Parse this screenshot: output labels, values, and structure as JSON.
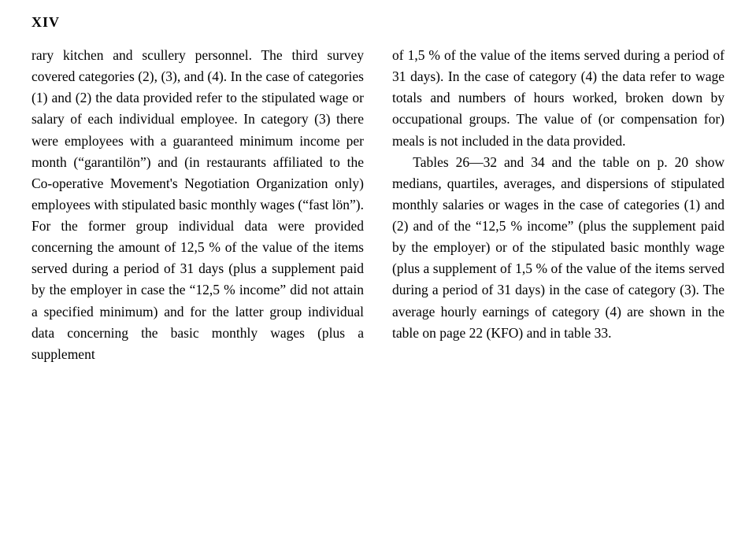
{
  "pageNumber": "XIV",
  "columns": {
    "left": "rary kitchen and scullery personnel. The third survey covered categories (2), (3), and (4). In the case of categories (1) and (2) the data provided refer to the stipulated wage or salary of each individual employee. In category (3) there were employees with a guaranteed minimum income per month (“garantilön”) and (in restaurants affiliated to the Co-operative Movement's Negotiation Organization only) employees with stipulated basic monthly wages (“fast lön”). For the former group individual data were provided concerning the amount of 12,5 % of the value of the items served during a period of 31 days (plus a supplement paid by the employer in case the “12,5 % income” did not attain a specified minimum) and for the latter group individual data concerning the basic monthly wages (plus a supplement",
    "right": "of 1,5 % of the value of the items served during a period of 31 days). In the case of category (4) the data refer to wage totals and numbers of hours worked, broken down by occupational groups. The value of (or compensation for) meals is not included in the data provided.",
    "right2": "Tables 26—32 and 34 and the table on p. 20 show medians, quartiles, averages, and dispersions of stipulated monthly salaries or wages in the case of categories (1) and (2) and of the “12,5 % income” (plus the supplement paid by the employer) or of the stipulated basic monthly wage (plus a supplement of 1,5 % of the value of the items served during a period of 31 days) in the case of category (3). The average hourly earnings of category (4) are shown in the table on page 22 (KFO) and in table 33."
  },
  "styles": {
    "textColor": "#000000",
    "background": "#ffffff",
    "fontSize": 17.5,
    "lineHeight": 1.55
  }
}
